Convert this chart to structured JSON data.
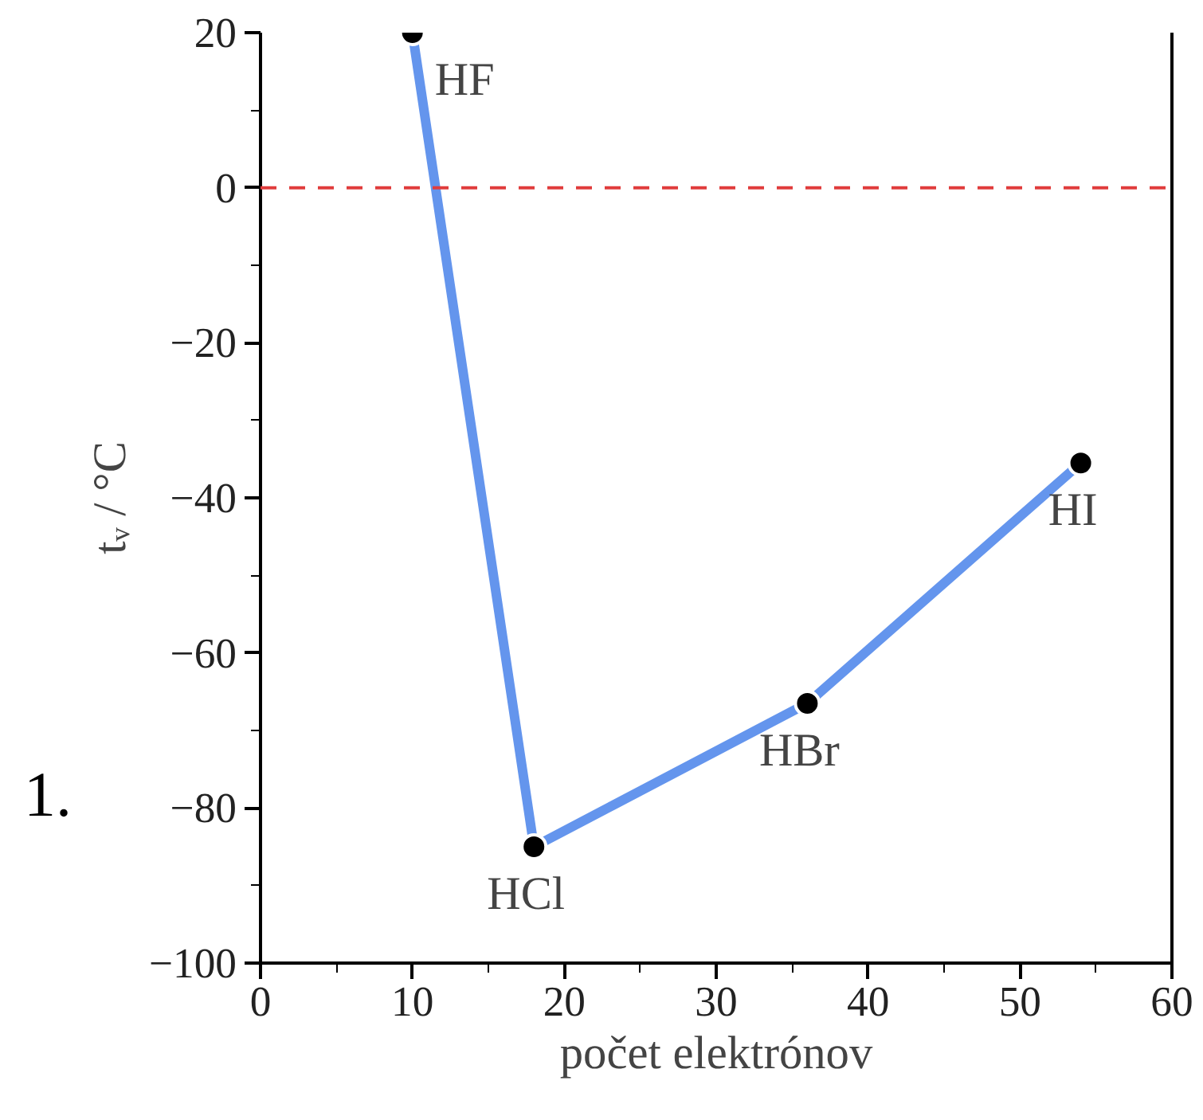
{
  "chart_data": {
    "type": "line",
    "xlabel": "počet elektrónov",
    "ylabel": "tᵥ / °C",
    "x": [
      10,
      18,
      36,
      54
    ],
    "series": [
      {
        "color": "#6495ed",
        "values": [
          20,
          -85,
          -66.5,
          -35.5
        ]
      }
    ],
    "marker": "circle",
    "line_style": "solid",
    "xlim": [
      0,
      60
    ],
    "xticks": [
      0,
      10,
      20,
      30,
      40,
      50,
      60
    ],
    "ylim": [
      -100,
      20
    ],
    "yticks": [
      -100,
      -80,
      -60,
      -40,
      -20,
      0,
      20
    ],
    "ref_lines": [
      {
        "axis": "y",
        "value": 0,
        "color": "#e03c3c",
        "line_style": "dashed"
      }
    ],
    "annotations": [
      {
        "text": "HF",
        "x": 10,
        "y": 20
      },
      {
        "text": "HCl",
        "x": 18,
        "y": -85
      },
      {
        "text": "HBr",
        "x": 36,
        "y": -66.5
      },
      {
        "text": "HI",
        "x": 54,
        "y": -35.5
      },
      "1."
    ]
  }
}
